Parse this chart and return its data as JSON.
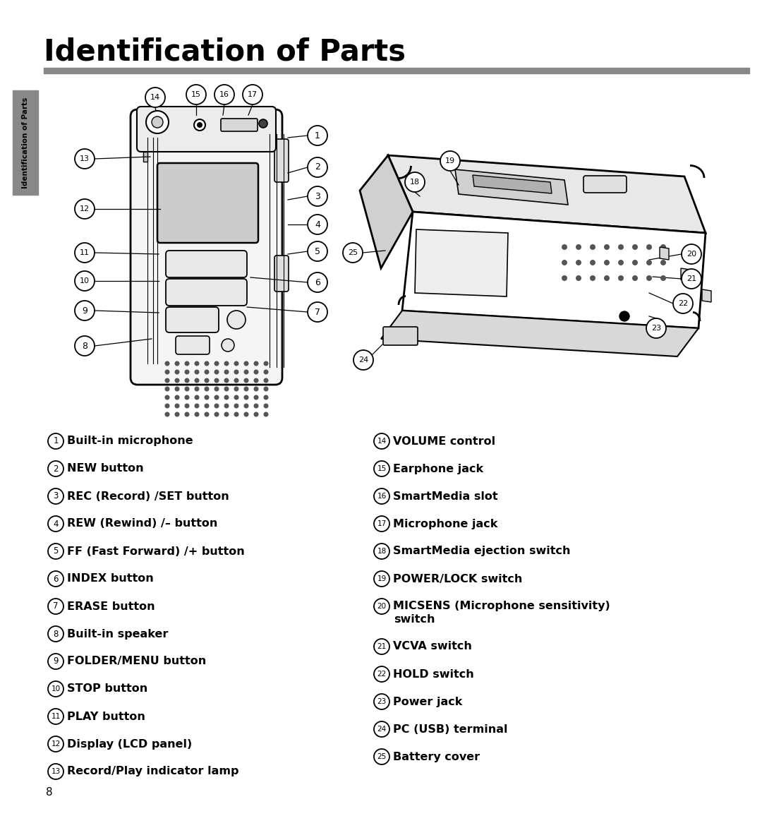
{
  "title": "Identification of Parts",
  "title_fontsize": 30,
  "title_fontweight": "bold",
  "page_number": "8",
  "sidebar_text": "Identification of Parts",
  "bg_color": "#ffffff",
  "rule_color": "#888888",
  "left_items": [
    {
      "num": "1",
      "text": "Built-in microphone"
    },
    {
      "num": "2",
      "text": "NEW button"
    },
    {
      "num": "3",
      "text": "REC (Record) /SET button"
    },
    {
      "num": "4",
      "text": "REW (Rewind) /– button"
    },
    {
      "num": "5",
      "text": "FF (Fast Forward) /+ button"
    },
    {
      "num": "6",
      "text": "INDEX button"
    },
    {
      "num": "7",
      "text": "ERASE button"
    },
    {
      "num": "8",
      "text": "Built-in speaker"
    },
    {
      "num": "9",
      "text": "FOLDER/MENU button"
    },
    {
      "num": "10",
      "text": "STOP button"
    },
    {
      "num": "11",
      "text": "PLAY button"
    },
    {
      "num": "12",
      "text": "Display (LCD panel)"
    },
    {
      "num": "13",
      "text": "Record/Play indicator lamp"
    }
  ],
  "right_items": [
    {
      "num": "14",
      "text": "VOLUME control"
    },
    {
      "num": "15",
      "text": "Earphone jack"
    },
    {
      "num": "16",
      "text": "SmartMedia slot"
    },
    {
      "num": "17",
      "text": "Microphone jack"
    },
    {
      "num": "18",
      "text": "SmartMedia ejection switch"
    },
    {
      "num": "19",
      "text": "POWER/LOCK switch"
    },
    {
      "num": "20",
      "text": "MICSENS (Microphone sensitivity)\nswitch"
    },
    {
      "num": "21",
      "text": "VCVA switch"
    },
    {
      "num": "22",
      "text": "HOLD switch"
    },
    {
      "num": "23",
      "text": "Power jack"
    },
    {
      "num": "24",
      "text": "PC (USB) terminal"
    },
    {
      "num": "25",
      "text": "Battery cover"
    }
  ],
  "item_fontsize": 12,
  "item_fontweight": "bold",
  "num_circle_r": 0.012
}
